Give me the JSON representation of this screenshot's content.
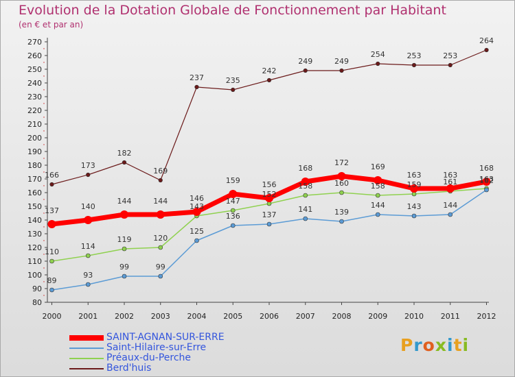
{
  "chart_data": {
    "type": "line",
    "title": "Evolution de la Dotation Globale de Fonctionnement par Habitant",
    "subtitle": "(en € et par an)",
    "x": [
      "2000",
      "2001",
      "2002",
      "2003",
      "2004",
      "2005",
      "2006",
      "2007",
      "2008",
      "2009",
      "2010",
      "2011",
      "2012"
    ],
    "ylim": [
      80,
      270
    ],
    "yticks": [
      80,
      90,
      100,
      110,
      120,
      130,
      140,
      150,
      160,
      170,
      180,
      190,
      200,
      210,
      220,
      230,
      240,
      250,
      260,
      270
    ],
    "grid": false,
    "legend_position": "bottom-left",
    "series": [
      {
        "name": "SAINT-AGNAN-SUR-ERRE",
        "color": "#ff0000",
        "values": [
          137,
          140,
          144,
          144,
          146,
          159,
          156,
          168,
          172,
          169,
          163,
          163,
          168
        ],
        "labels": [
          "137",
          "140",
          "144",
          "144",
          "146",
          "159",
          "156",
          "168",
          "172",
          "169",
          "163",
          "163",
          "168"
        ]
      },
      {
        "name": "Saint-Hilaire-sur-Erre",
        "color": "#5b9bd5",
        "values": [
          89,
          93,
          99,
          99,
          125,
          136,
          137,
          141,
          139,
          144,
          143,
          144,
          162
        ],
        "labels": [
          "89",
          "93",
          "99",
          "99",
          "125",
          "136",
          "137",
          "141",
          "139",
          "144",
          "143",
          "144",
          "162"
        ]
      },
      {
        "name": "Préaux-du-Perche",
        "color": "#8fd14f",
        "values": [
          110,
          114,
          119,
          120,
          143,
          147,
          152,
          158,
          160,
          158,
          159,
          161,
          163
        ],
        "labels": [
          "110",
          "114",
          "119",
          "120",
          "143",
          "147",
          "152",
          "158",
          "160",
          "158",
          "159",
          "161",
          "163"
        ]
      },
      {
        "name": "Berd'huis",
        "color": "#6b1a1a",
        "values": [
          166,
          173,
          182,
          169,
          237,
          235,
          242,
          249,
          249,
          254,
          253,
          253,
          264
        ],
        "labels": [
          "166",
          "173",
          "182",
          "169",
          "237",
          "235",
          "242",
          "249",
          "249",
          "254",
          "253",
          "253",
          "264"
        ]
      }
    ]
  },
  "brand": {
    "text": "Proxiti",
    "letter_colors": [
      "#e8a020",
      "#3399cc",
      "#e06020",
      "#88bb22",
      "#3399cc",
      "#e8a020",
      "#88bb22"
    ]
  }
}
